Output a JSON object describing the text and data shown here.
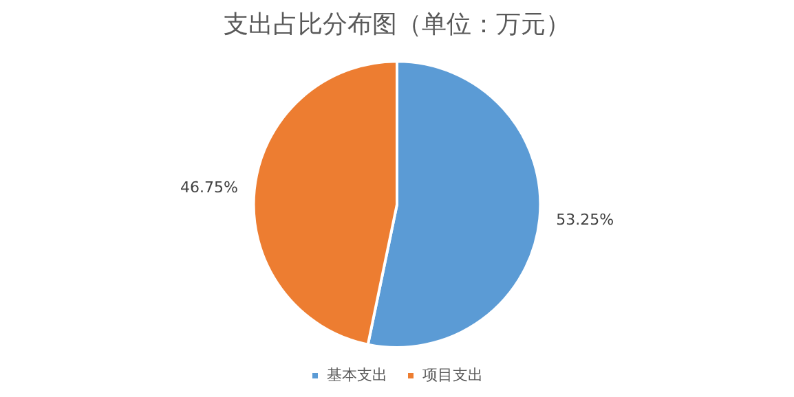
{
  "chart_data": {
    "type": "pie",
    "title": "支出占比分布图（单位：万元）",
    "categories": [
      "基本支出",
      "项目支出"
    ],
    "values": [
      53.25,
      46.75
    ],
    "value_labels": [
      "53.25%",
      "46.75%"
    ],
    "colors": [
      "#5b9bd5",
      "#ed7d31"
    ],
    "legend": "bottom"
  }
}
